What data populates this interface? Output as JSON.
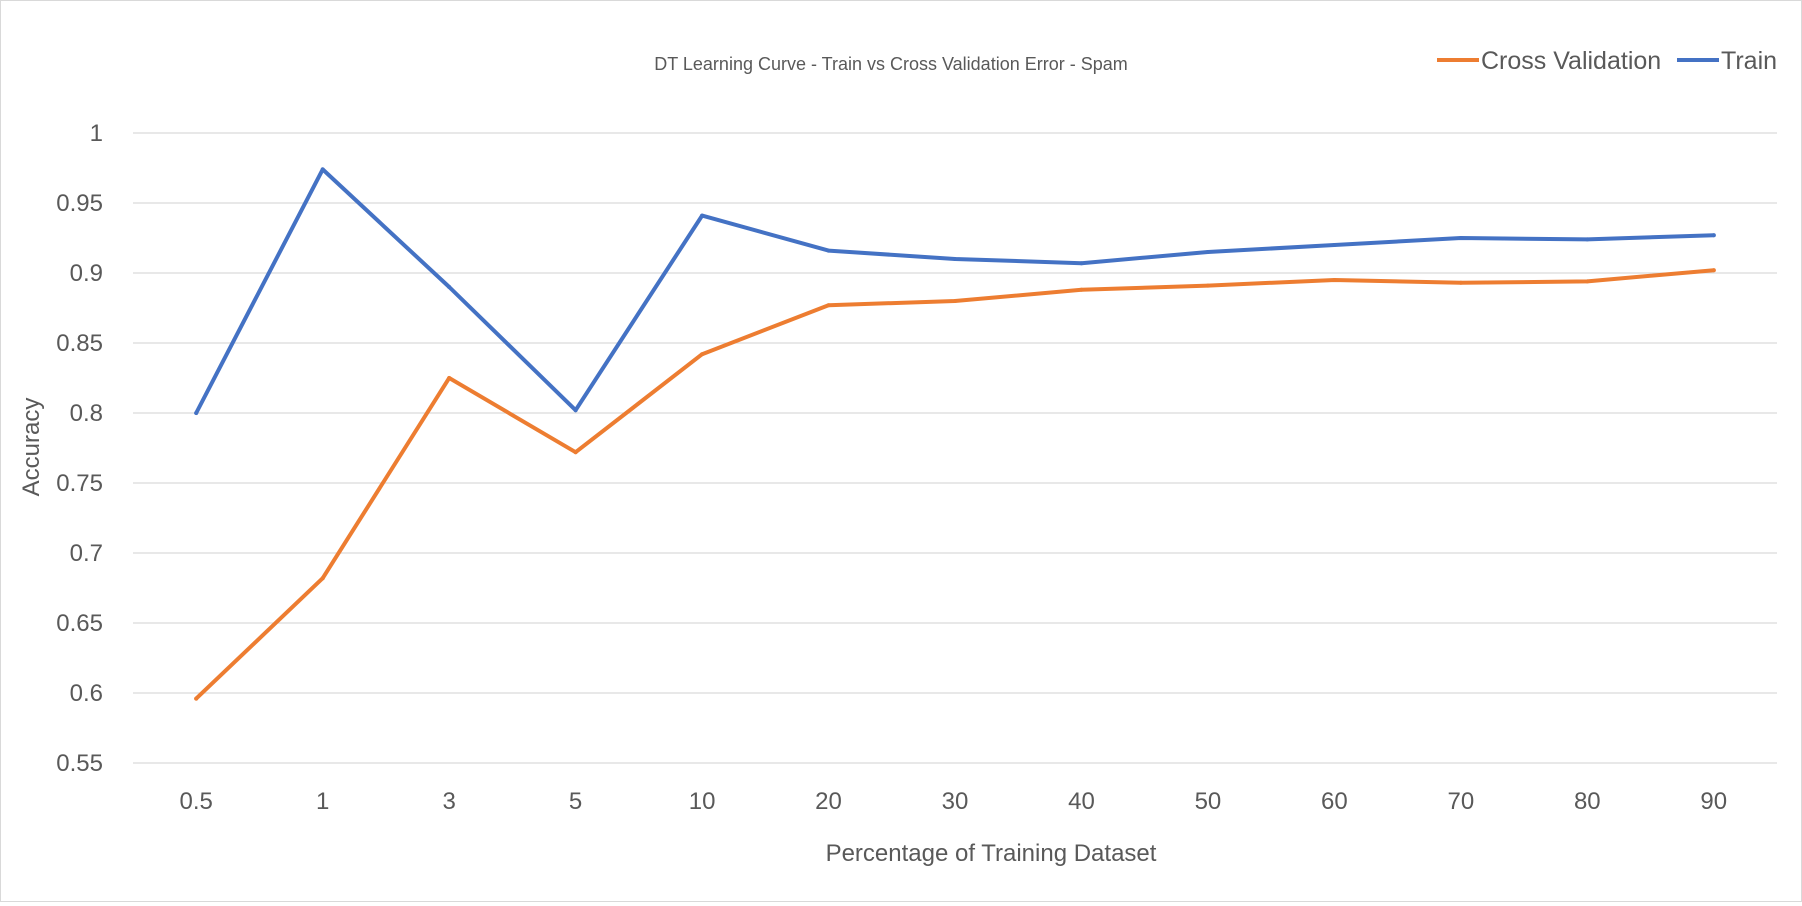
{
  "chart_data": {
    "type": "line",
    "title": "DT Learning Curve - Train vs Cross Validation Error - Spam",
    "xlabel": "Percentage of Training Dataset",
    "ylabel": "Accuracy",
    "categories": [
      "0.5",
      "1",
      "3",
      "5",
      "10",
      "20",
      "30",
      "40",
      "50",
      "60",
      "70",
      "80",
      "90"
    ],
    "ylim": [
      0.55,
      1
    ],
    "yticks": [
      "0.55",
      "0.6",
      "0.65",
      "0.7",
      "0.75",
      "0.8",
      "0.85",
      "0.9",
      "0.95",
      "1"
    ],
    "grid": true,
    "legend_position": "top-right",
    "series": [
      {
        "name": "Cross Validation",
        "color": "#ED7D31",
        "values": [
          0.596,
          0.682,
          0.825,
          0.772,
          0.842,
          0.877,
          0.88,
          0.888,
          0.891,
          0.895,
          0.893,
          0.894,
          0.902
        ]
      },
      {
        "name": "Train",
        "color": "#4472C4",
        "values": [
          0.8,
          0.974,
          0.89,
          0.802,
          0.941,
          0.916,
          0.91,
          0.907,
          0.915,
          0.92,
          0.925,
          0.924,
          0.927
        ]
      }
    ]
  }
}
